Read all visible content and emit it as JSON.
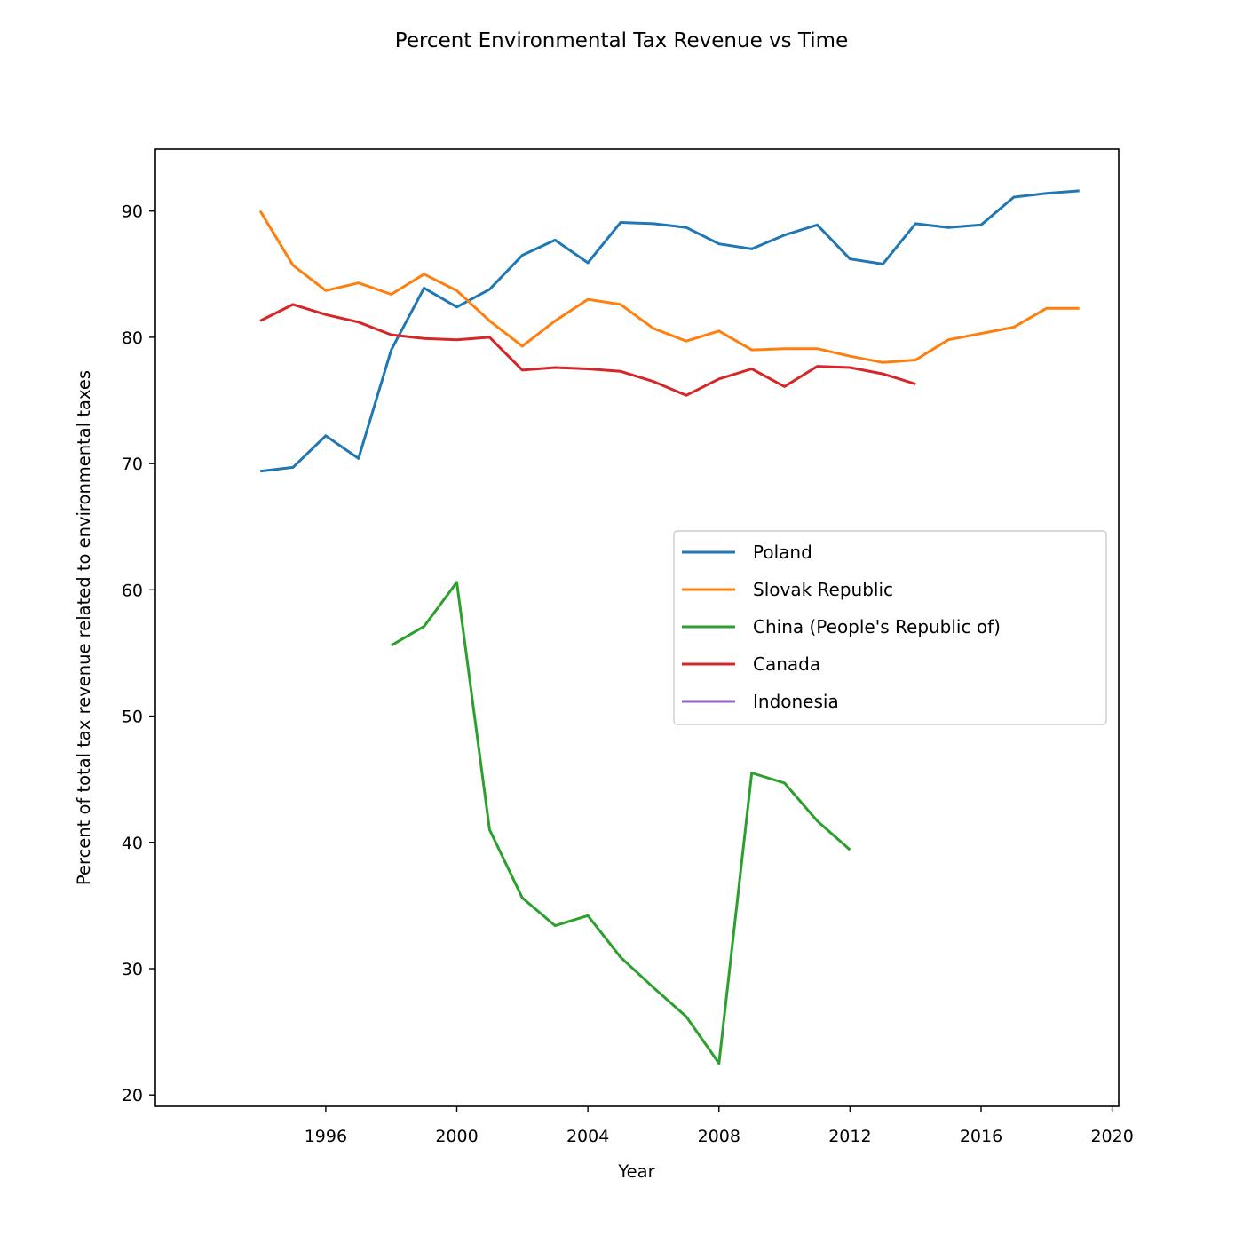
{
  "chart_data": {
    "type": "line",
    "title": "Percent Environmental Tax Revenue vs Time",
    "xlabel": "Year",
    "ylabel": "Percent of total tax revenue related to environmental taxes",
    "xlim": [
      1990.8,
      2020.2
    ],
    "ylim": [
      19.1,
      94.9
    ],
    "xticks": [
      1996,
      2000,
      2004,
      2008,
      2012,
      2016,
      2020
    ],
    "yticks": [
      20,
      30,
      40,
      50,
      60,
      70,
      80,
      90
    ],
    "grid": false,
    "legend_position": "center-right",
    "series": [
      {
        "name": "Poland",
        "color": "#1f77b4",
        "x": [
          1994,
          1995,
          1996,
          1997,
          1998,
          1999,
          2000,
          2001,
          2002,
          2003,
          2004,
          2005,
          2006,
          2007,
          2008,
          2009,
          2010,
          2011,
          2012,
          2013,
          2014,
          2015,
          2016,
          2017,
          2018,
          2019
        ],
        "y": [
          69.4,
          69.7,
          72.2,
          70.4,
          79.0,
          83.9,
          82.4,
          83.8,
          86.5,
          87.7,
          85.9,
          89.1,
          89.0,
          88.7,
          87.4,
          87.0,
          88.1,
          88.9,
          86.2,
          85.8,
          89.0,
          88.7,
          88.9,
          91.1,
          91.4,
          91.6
        ]
      },
      {
        "name": "Slovak Republic",
        "color": "#ff7f0e",
        "x": [
          1994,
          1995,
          1996,
          1997,
          1998,
          1999,
          2000,
          2001,
          2002,
          2003,
          2004,
          2005,
          2006,
          2007,
          2008,
          2009,
          2010,
          2011,
          2012,
          2013,
          2014,
          2015,
          2016,
          2017,
          2018,
          2019
        ],
        "y": [
          90.0,
          85.7,
          83.7,
          84.3,
          83.4,
          85.0,
          83.7,
          81.3,
          79.3,
          81.3,
          83.0,
          82.6,
          80.7,
          79.7,
          80.5,
          79.0,
          79.1,
          79.1,
          78.5,
          78.0,
          78.2,
          79.8,
          80.3,
          80.8,
          82.3,
          82.3
        ]
      },
      {
        "name": "China (People's Republic of)",
        "color": "#2ca02c",
        "x": [
          1998,
          1999,
          2000,
          2001,
          2002,
          2003,
          2004,
          2005,
          2006,
          2007,
          2008,
          2009,
          2010,
          2011,
          2012
        ],
        "y": [
          55.6,
          57.1,
          60.6,
          41.0,
          35.6,
          33.4,
          34.2,
          30.9,
          28.5,
          26.2,
          22.5,
          45.5,
          44.7,
          41.7,
          39.4
        ]
      },
      {
        "name": "Canada",
        "color": "#d62728",
        "x": [
          1994,
          1995,
          1996,
          1997,
          1998,
          1999,
          2000,
          2001,
          2002,
          2003,
          2004,
          2005,
          2006,
          2007,
          2008,
          2009,
          2010,
          2011,
          2012,
          2013,
          2014
        ],
        "y": [
          81.3,
          82.6,
          81.8,
          81.2,
          80.2,
          79.9,
          79.8,
          80.0,
          77.4,
          77.6,
          77.5,
          77.3,
          76.5,
          75.4,
          76.7,
          77.5,
          76.1,
          77.7,
          77.6,
          77.1,
          76.3
        ]
      },
      {
        "name": "Indonesia",
        "color": "#9467bd",
        "x": [],
        "y": []
      }
    ]
  }
}
